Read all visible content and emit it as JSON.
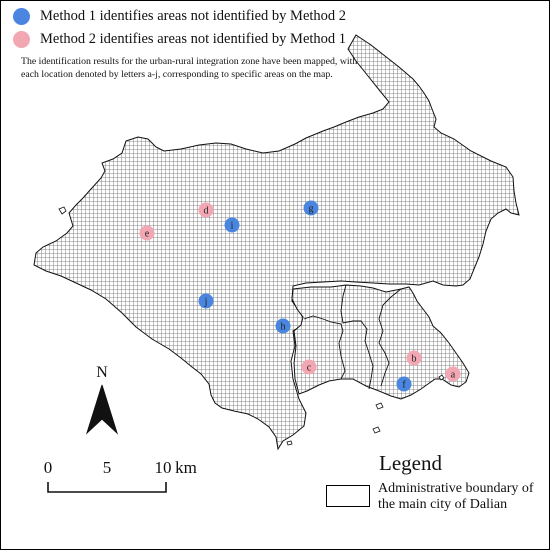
{
  "legend_methods": {
    "method1": {
      "label": "Method 1 identifies areas not identified by Method 2",
      "color": "#4a86e0"
    },
    "method2": {
      "label": "Method 2 identifies areas not identified by Method 1",
      "color": "#f2a7b3"
    }
  },
  "note": "The identification results for the urban-rural integration zone have been mapped, with each location denoted by letters a-j, corresponding to specific areas on the map.",
  "points": [
    {
      "letter": "a",
      "method": 2
    },
    {
      "letter": "b",
      "method": 2
    },
    {
      "letter": "c",
      "method": 2
    },
    {
      "letter": "d",
      "method": 2
    },
    {
      "letter": "e",
      "method": 2
    },
    {
      "letter": "f",
      "method": 1
    },
    {
      "letter": "g",
      "method": 1
    },
    {
      "letter": "h",
      "method": 1
    },
    {
      "letter": "i",
      "method": 1
    },
    {
      "letter": "j",
      "method": 1
    }
  ],
  "north_arrow": {
    "label": "N"
  },
  "scale_bar": {
    "ticks": [
      "0",
      "5",
      "10"
    ],
    "unit": "km"
  },
  "legend": {
    "title": "Legend",
    "boundary_label": "Administrative boundary of the main city of Dalian"
  }
}
